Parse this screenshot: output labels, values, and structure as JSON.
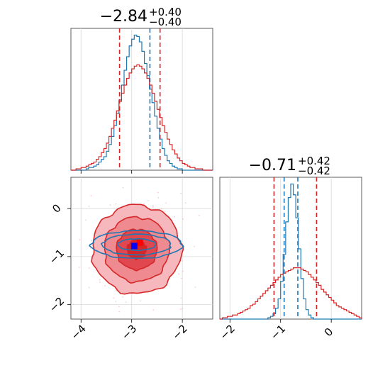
{
  "chart_data": [
    {
      "type": "histogram",
      "panel": "marginal-param-1",
      "title_value": "−2.84",
      "title_plus": "+0.40",
      "title_minus": "−0.40",
      "xlim": [
        -4.2,
        -1.4
      ],
      "grid": true,
      "series": [
        {
          "color": "#1f77b4",
          "bin_width": 0.05,
          "bin_start": -4.2,
          "counts": [
            0,
            0,
            0,
            0,
            0,
            0,
            1,
            2,
            2,
            3,
            4,
            6,
            8,
            10,
            14,
            19,
            25,
            33,
            42,
            52,
            63,
            74,
            84,
            92,
            97,
            100,
            99,
            95,
            88,
            79,
            70,
            60,
            50,
            40,
            31,
            23,
            16,
            11,
            7,
            5,
            3,
            2,
            1,
            1,
            0,
            0,
            0,
            0,
            0,
            0,
            0,
            0,
            0,
            0,
            0,
            0
          ],
          "quantile_lines": [
            -2.64
          ]
        },
        {
          "color": "#d62728",
          "bin_width": 0.05,
          "bin_start": -4.2,
          "counts": [
            0,
            0,
            1,
            1,
            2,
            2,
            3,
            4,
            5,
            6,
            8,
            10,
            13,
            16,
            20,
            25,
            31,
            37,
            44,
            51,
            57,
            63,
            68,
            72,
            75,
            77,
            78,
            77,
            75,
            72,
            68,
            63,
            57,
            51,
            45,
            39,
            33,
            28,
            23,
            19,
            15,
            12,
            9,
            7,
            5,
            4,
            3,
            2,
            2,
            1,
            1,
            1,
            0,
            0,
            0,
            0
          ],
          "quantile_lines": [
            -3.24,
            -2.44
          ]
        }
      ]
    },
    {
      "type": "histogram",
      "panel": "marginal-param-2",
      "title_value": "−0.71",
      "title_plus": "+0.42",
      "title_minus": "−0.42",
      "xlim": [
        -2.2,
        0.6
      ],
      "grid": true,
      "series": [
        {
          "color": "#1f77b4",
          "bin_width": 0.05,
          "bin_start": -2.2,
          "counts": [
            0,
            0,
            0,
            0,
            0,
            0,
            0,
            0,
            0,
            0,
            0,
            0,
            0,
            0,
            0,
            0,
            0,
            0,
            0,
            1,
            2,
            4,
            8,
            15,
            28,
            48,
            72,
            90,
            100,
            92,
            75,
            52,
            30,
            15,
            7,
            3,
            1,
            0,
            0,
            0,
            0,
            0,
            0,
            0,
            0,
            0,
            0,
            0,
            0,
            0,
            0,
            0,
            0,
            0,
            0,
            0
          ],
          "quantile_lines": [
            -0.93,
            -0.66
          ]
        },
        {
          "color": "#d62728",
          "bin_width": 0.05,
          "bin_start": -2.2,
          "counts": [
            0,
            1,
            1,
            2,
            2,
            3,
            3,
            4,
            5,
            6,
            7,
            8,
            10,
            11,
            13,
            15,
            17,
            19,
            21,
            23,
            25,
            27,
            29,
            31,
            33,
            34,
            35,
            36,
            37,
            38,
            38,
            38,
            37,
            36,
            35,
            33,
            31,
            29,
            27,
            25,
            22,
            20,
            18,
            16,
            14,
            12,
            10,
            9,
            8,
            7,
            6,
            5,
            4,
            3,
            2,
            1
          ],
          "quantile_lines": [
            -1.13,
            -0.29
          ]
        }
      ]
    },
    {
      "type": "contour",
      "panel": "joint-param-1-param-2",
      "xlim": [
        -4.2,
        -1.4
      ],
      "ylim": [
        -2.3,
        0.65
      ],
      "xticks": [
        -4,
        -3,
        -2
      ],
      "yticks": [
        0,
        -1,
        -2
      ],
      "xtick_labels": [
        "−4",
        "−3",
        "−2"
      ],
      "ytick_labels": [
        "0",
        "−1",
        "−2"
      ],
      "grid": true,
      "series": [
        {
          "color": "#d62728",
          "center": [
            -2.9,
            -0.85
          ],
          "sigma": [
            0.4,
            0.42
          ],
          "levels": [
            1.0,
            1.6,
            2.2
          ],
          "filled": true
        },
        {
          "color": "#1f77b4",
          "center": [
            -2.9,
            -0.75
          ],
          "sigma": [
            0.75,
            0.2
          ],
          "levels": [
            0.5,
            0.9,
            1.2
          ],
          "filled": false
        }
      ],
      "markers": [
        {
          "color": "#ff0000",
          "x": -2.84,
          "y": -0.71
        },
        {
          "color": "#0000ff",
          "x": -2.95,
          "y": -0.78
        }
      ]
    }
  ],
  "axes2_xticks": [
    -2,
    -1,
    0
  ],
  "axes2_xtick_labels": [
    "−2",
    "−1",
    "0"
  ]
}
